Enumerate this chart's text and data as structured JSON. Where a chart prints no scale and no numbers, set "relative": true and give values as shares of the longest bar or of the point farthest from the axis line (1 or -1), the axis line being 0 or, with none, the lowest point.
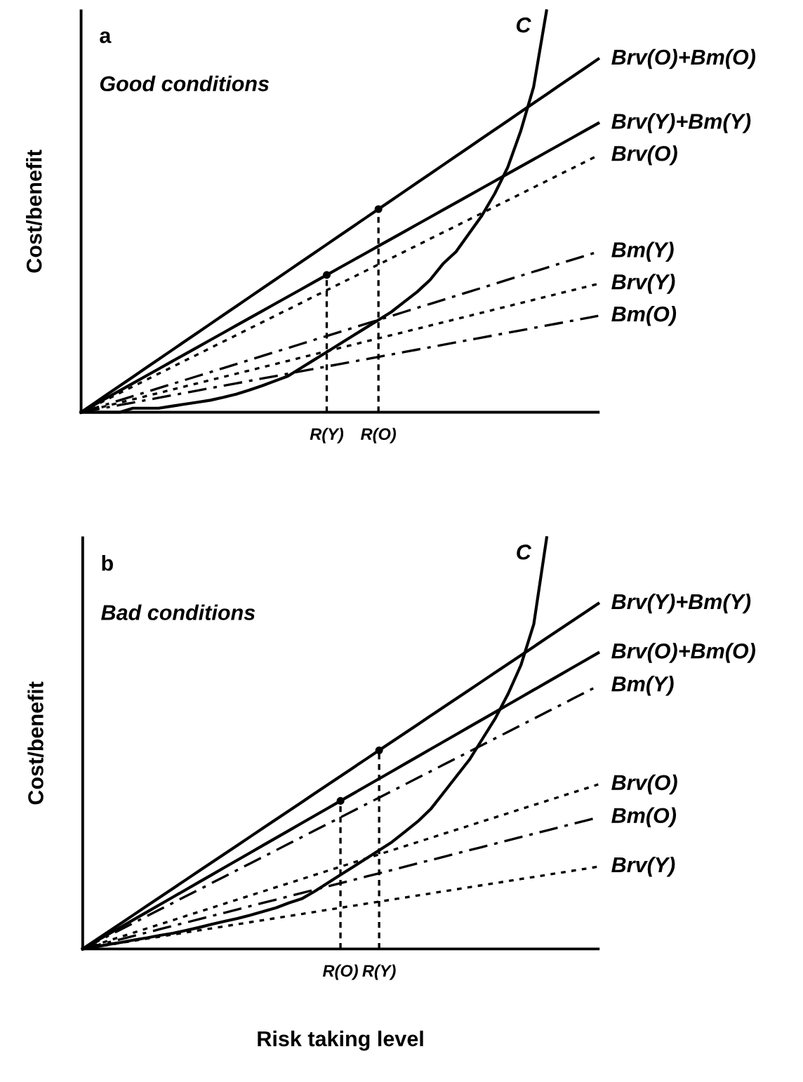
{
  "chart_data": [
    {
      "type": "line",
      "relative": true,
      "ylabel": "Cost/benefit",
      "categories": [
        null,
        null,
        null,
        null,
        null,
        null,
        null,
        null,
        null,
        null,
        null,
        null,
        null,
        null,
        null,
        null,
        null,
        null,
        null,
        "R(Y)",
        null,
        null,
        null,
        "R(O)",
        null,
        null,
        null,
        null,
        null,
        null,
        null,
        null,
        null,
        null,
        null,
        null,
        null,
        null,
        null,
        null,
        null
      ],
      "tick_labels": "x",
      "legend": false,
      "annotations": [
        "a",
        "Good conditions"
      ],
      "series": [
        {
          "name": "C",
          "color": "#000000",
          "line_style": "solid",
          "values": [
            0,
            0,
            0,
            0,
            0.01,
            0.01,
            0.01,
            0.015,
            0.02,
            0.025,
            0.03,
            0.037,
            0.045,
            0.055,
            0.066,
            0.078,
            0.09,
            0.11,
            0.13,
            0.15,
            0.17,
            0.19,
            0.21,
            0.23,
            0.25,
            0.275,
            0.3,
            0.33,
            0.37,
            0.4,
            0.445,
            0.49,
            0.545,
            0.61,
            0.7,
            0.81,
            1.0,
            null,
            null,
            null,
            null
          ]
        },
        {
          "name": "Brv(O)+Bm(O)",
          "color": "#000000",
          "line_style": "solid",
          "values": [
            0,
            0.022,
            0.044,
            0.066,
            0.088,
            0.11,
            0.132,
            0.154,
            0.176,
            0.198,
            0.22,
            0.242,
            0.264,
            0.286,
            0.308,
            0.33,
            0.352,
            0.374,
            0.396,
            0.418,
            0.44,
            0.462,
            0.484,
            0.506,
            0.528,
            0.55,
            0.572,
            0.594,
            0.616,
            0.638,
            0.66,
            0.682,
            0.704,
            0.726,
            0.748,
            0.77,
            0.792,
            0.814,
            0.836,
            0.858,
            0.88
          ]
        },
        {
          "name": "Brv(Y)+Bm(Y)",
          "color": "#000000",
          "line_style": "solid",
          "values": [
            0,
            0.018,
            0.036,
            0.054,
            0.072,
            0.09,
            0.108,
            0.126,
            0.144,
            0.162,
            0.18,
            0.198,
            0.216,
            0.234,
            0.252,
            0.27,
            0.288,
            0.306,
            0.324,
            0.342,
            0.36,
            0.378,
            0.396,
            0.414,
            0.432,
            0.45,
            0.468,
            0.486,
            0.504,
            0.522,
            0.54,
            0.558,
            0.576,
            0.594,
            0.612,
            0.63,
            0.648,
            0.666,
            0.684,
            0.702,
            0.72
          ]
        },
        {
          "name": "Brv(O)",
          "color": "#000000",
          "line_style": "dotted",
          "values": [
            0,
            0.016,
            0.032,
            0.048,
            0.064,
            0.08,
            0.096,
            0.112,
            0.128,
            0.144,
            0.16,
            0.176,
            0.192,
            0.208,
            0.224,
            0.24,
            0.256,
            0.272,
            0.288,
            0.304,
            0.32,
            0.336,
            0.352,
            0.368,
            0.384,
            0.4,
            0.416,
            0.432,
            0.448,
            0.464,
            0.48,
            0.496,
            0.512,
            0.528,
            0.544,
            0.56,
            0.576,
            0.592,
            0.608,
            0.624,
            0.64
          ]
        },
        {
          "name": "Bm(Y)",
          "color": "#000000",
          "line_style": "dashdot",
          "values": [
            0,
            0.01,
            0.02,
            0.03,
            0.04,
            0.05,
            0.06,
            0.07,
            0.08,
            0.09,
            0.1,
            0.11,
            0.12,
            0.13,
            0.14,
            0.15,
            0.16,
            0.17,
            0.18,
            0.19,
            0.2,
            0.21,
            0.22,
            0.23,
            0.24,
            0.25,
            0.26,
            0.27,
            0.28,
            0.29,
            0.3,
            0.31,
            0.32,
            0.33,
            0.34,
            0.35,
            0.36,
            0.37,
            0.38,
            0.39,
            0.4
          ]
        },
        {
          "name": "Brv(Y)",
          "color": "#000000",
          "line_style": "dotted",
          "values": [
            0,
            0.008,
            0.016,
            0.024,
            0.032,
            0.04,
            0.048,
            0.056,
            0.064,
            0.072,
            0.08,
            0.088,
            0.096,
            0.104,
            0.112,
            0.12,
            0.128,
            0.136,
            0.144,
            0.152,
            0.16,
            0.168,
            0.176,
            0.184,
            0.192,
            0.2,
            0.208,
            0.216,
            0.224,
            0.232,
            0.24,
            0.248,
            0.256,
            0.264,
            0.272,
            0.28,
            0.288,
            0.296,
            0.304,
            0.312,
            0.32
          ]
        },
        {
          "name": "Bm(O)",
          "color": "#000000",
          "line_style": "dashdot",
          "values": [
            0,
            0.006,
            0.012,
            0.018,
            0.024,
            0.03,
            0.036,
            0.042,
            0.048,
            0.054,
            0.06,
            0.066,
            0.072,
            0.078,
            0.084,
            0.09,
            0.096,
            0.102,
            0.108,
            0.114,
            0.12,
            0.126,
            0.132,
            0.138,
            0.144,
            0.15,
            0.156,
            0.162,
            0.168,
            0.174,
            0.18,
            0.186,
            0.192,
            0.198,
            0.204,
            0.21,
            0.216,
            0.222,
            0.228,
            0.234,
            0.24
          ]
        },
        {
          "type": "lollipop",
          "marker": "circle",
          "color": "#000000",
          "line_style": "dashed",
          "values": [
            null,
            null,
            null,
            null,
            null,
            null,
            null,
            null,
            null,
            null,
            null,
            null,
            null,
            null,
            null,
            null,
            null,
            null,
            null,
            0.342,
            null,
            null,
            null,
            null,
            null,
            null,
            null,
            null,
            null,
            null,
            null,
            null,
            null,
            null,
            null,
            null,
            null,
            null,
            null,
            null,
            null
          ]
        },
        {
          "type": "lollipop",
          "marker": "circle",
          "color": "#000000",
          "line_style": "dashed",
          "values": [
            null,
            null,
            null,
            null,
            null,
            null,
            null,
            null,
            null,
            null,
            null,
            null,
            null,
            null,
            null,
            null,
            null,
            null,
            null,
            null,
            null,
            null,
            null,
            0.506,
            null,
            null,
            null,
            null,
            null,
            null,
            null,
            null,
            null,
            null,
            null,
            null,
            null,
            null,
            null,
            null,
            null
          ]
        }
      ]
    },
    {
      "type": "line",
      "relative": true,
      "ylabel": "Cost/benefit",
      "xlabel": "Risk taking level",
      "categories": [
        null,
        null,
        null,
        null,
        null,
        null,
        null,
        null,
        null,
        null,
        null,
        null,
        null,
        null,
        null,
        null,
        null,
        null,
        null,
        null,
        "R(O)",
        null,
        null,
        "R(Y)",
        null,
        null,
        null,
        null,
        null,
        null,
        null,
        null,
        null,
        null,
        null,
        null,
        null,
        null,
        null,
        null,
        null
      ],
      "tick_labels": "x",
      "legend": false,
      "annotations": [
        "b",
        "Bad conditions"
      ],
      "series": [
        {
          "name": "C",
          "color": "#000000",
          "line_style": "solid",
          "values": [
            0,
            0.005,
            0.011,
            0.016,
            0.022,
            0.027,
            0.033,
            0.038,
            0.045,
            0.052,
            0.06,
            0.067,
            0.074,
            0.082,
            0.091,
            0.1,
            0.112,
            0.122,
            0.14,
            0.16,
            0.18,
            0.2,
            0.22,
            0.24,
            0.26,
            0.285,
            0.31,
            0.34,
            0.38,
            0.42,
            0.46,
            0.51,
            0.56,
            0.62,
            0.69,
            0.79,
            1.0,
            null,
            null,
            null,
            null
          ]
        },
        {
          "name": "Brv(Y)+Bm(Y)",
          "color": "#000000",
          "line_style": "solid",
          "values": [
            0,
            0.021,
            0.042,
            0.063,
            0.084,
            0.105,
            0.126,
            0.147,
            0.168,
            0.189,
            0.21,
            0.231,
            0.252,
            0.273,
            0.294,
            0.315,
            0.336,
            0.357,
            0.378,
            0.399,
            0.42,
            0.441,
            0.462,
            0.483,
            0.504,
            0.525,
            0.546,
            0.567,
            0.588,
            0.609,
            0.63,
            0.651,
            0.672,
            0.693,
            0.714,
            0.735,
            0.756,
            0.777,
            0.798,
            0.819,
            0.84
          ]
        },
        {
          "name": "Brv(O)+Bm(O)",
          "color": "#000000",
          "line_style": "solid",
          "values": [
            0,
            0.018,
            0.036,
            0.054,
            0.072,
            0.09,
            0.108,
            0.126,
            0.144,
            0.162,
            0.18,
            0.198,
            0.216,
            0.234,
            0.252,
            0.27,
            0.288,
            0.306,
            0.324,
            0.342,
            0.36,
            0.378,
            0.396,
            0.414,
            0.432,
            0.45,
            0.468,
            0.486,
            0.504,
            0.522,
            0.54,
            0.558,
            0.576,
            0.594,
            0.612,
            0.63,
            0.648,
            0.666,
            0.684,
            0.702,
            0.72
          ]
        },
        {
          "name": "Bm(Y)",
          "color": "#000000",
          "line_style": "dashdot",
          "values": [
            0,
            0.016,
            0.032,
            0.048,
            0.064,
            0.08,
            0.096,
            0.112,
            0.128,
            0.144,
            0.16,
            0.176,
            0.192,
            0.208,
            0.224,
            0.24,
            0.256,
            0.272,
            0.288,
            0.304,
            0.32,
            0.336,
            0.352,
            0.368,
            0.384,
            0.4,
            0.416,
            0.432,
            0.448,
            0.464,
            0.48,
            0.496,
            0.512,
            0.528,
            0.544,
            0.56,
            0.576,
            0.592,
            0.608,
            0.624,
            0.64
          ]
        },
        {
          "name": "Brv(O)",
          "color": "#000000",
          "line_style": "dotted",
          "values": [
            0,
            0.01,
            0.02,
            0.03,
            0.04,
            0.05,
            0.06,
            0.07,
            0.08,
            0.09,
            0.1,
            0.11,
            0.12,
            0.13,
            0.14,
            0.15,
            0.16,
            0.17,
            0.18,
            0.19,
            0.2,
            0.21,
            0.22,
            0.23,
            0.24,
            0.25,
            0.26,
            0.27,
            0.28,
            0.29,
            0.3,
            0.31,
            0.32,
            0.33,
            0.34,
            0.35,
            0.36,
            0.37,
            0.38,
            0.39,
            0.4
          ]
        },
        {
          "name": "Bm(O)",
          "color": "#000000",
          "line_style": "dashdot",
          "values": [
            0,
            0.008,
            0.016,
            0.024,
            0.032,
            0.04,
            0.048,
            0.056,
            0.064,
            0.072,
            0.08,
            0.088,
            0.096,
            0.104,
            0.112,
            0.12,
            0.128,
            0.136,
            0.144,
            0.152,
            0.16,
            0.168,
            0.176,
            0.184,
            0.192,
            0.2,
            0.208,
            0.216,
            0.224,
            0.232,
            0.24,
            0.248,
            0.256,
            0.264,
            0.272,
            0.28,
            0.288,
            0.296,
            0.304,
            0.312,
            0.32
          ]
        },
        {
          "name": "Brv(Y)",
          "color": "#000000",
          "line_style": "dotted",
          "values": [
            0,
            0.005,
            0.01,
            0.015,
            0.02,
            0.025,
            0.03,
            0.035,
            0.04,
            0.045,
            0.05,
            0.055,
            0.06,
            0.065,
            0.07,
            0.075,
            0.08,
            0.085,
            0.09,
            0.095,
            0.1,
            0.105,
            0.11,
            0.115,
            0.12,
            0.125,
            0.13,
            0.135,
            0.14,
            0.145,
            0.15,
            0.155,
            0.16,
            0.165,
            0.17,
            0.175,
            0.18,
            0.185,
            0.19,
            0.195,
            0.2
          ]
        },
        {
          "type": "lollipop",
          "marker": "circle",
          "color": "#000000",
          "line_style": "dashed",
          "values": [
            null,
            null,
            null,
            null,
            null,
            null,
            null,
            null,
            null,
            null,
            null,
            null,
            null,
            null,
            null,
            null,
            null,
            null,
            null,
            null,
            0.36,
            null,
            null,
            null,
            null,
            null,
            null,
            null,
            null,
            null,
            null,
            null,
            null,
            null,
            null,
            null,
            null,
            null,
            null,
            null,
            null
          ]
        },
        {
          "type": "lollipop",
          "marker": "circle",
          "color": "#000000",
          "line_style": "dashed",
          "values": [
            null,
            null,
            null,
            null,
            null,
            null,
            null,
            null,
            null,
            null,
            null,
            null,
            null,
            null,
            null,
            null,
            null,
            null,
            null,
            null,
            null,
            null,
            null,
            0.483,
            null,
            null,
            null,
            null,
            null,
            null,
            null,
            null,
            null,
            null,
            null,
            null,
            null,
            null,
            null,
            null,
            null
          ]
        }
      ]
    }
  ]
}
